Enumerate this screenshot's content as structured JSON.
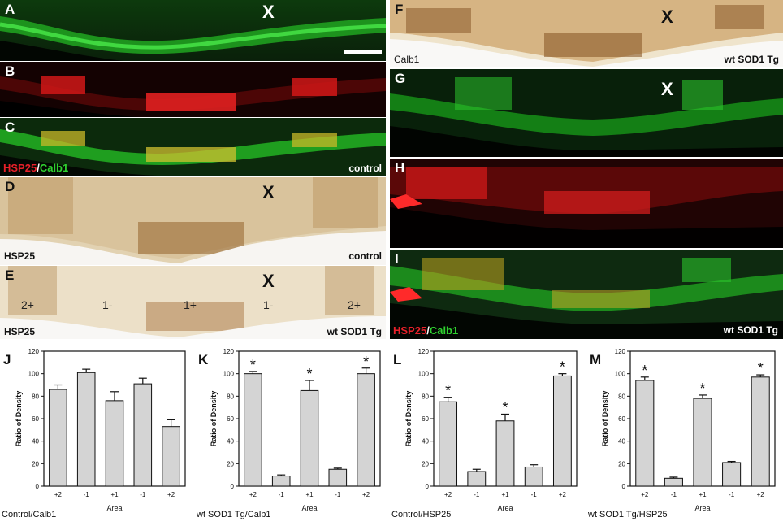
{
  "panels": {
    "A": {
      "label": "A",
      "x_mark": "X"
    },
    "B": {
      "label": "B"
    },
    "C": {
      "label": "C",
      "caption_red": "HSP25",
      "caption_slash": "/",
      "caption_green": "Calb1",
      "condition": "control"
    },
    "D": {
      "label": "D",
      "x_mark": "X",
      "stain": "HSP25",
      "condition": "control"
    },
    "E": {
      "label": "E",
      "x_mark": "X",
      "stain": "HSP25",
      "condition": "wt SOD1 Tg",
      "zones": [
        "2+",
        "1-",
        "1+",
        "1-",
        "2+"
      ]
    },
    "F": {
      "label": "F",
      "x_mark": "X",
      "stain": "Calb1",
      "condition": "wt SOD1 Tg"
    },
    "G": {
      "label": "G",
      "x_mark": "X"
    },
    "H": {
      "label": "H"
    },
    "I": {
      "label": "I",
      "caption_red": "HSP25",
      "caption_slash": "/",
      "caption_green": "Calb1",
      "condition": "wt SOD1 Tg"
    }
  },
  "colors": {
    "red": "#e8202a",
    "green": "#2fd22f",
    "bar_fill": "#d4d4d4"
  },
  "chart_data": [
    {
      "panel": "J",
      "type": "bar",
      "caption": "Control/Calb1",
      "xlabel": "Area",
      "ylabel": "Ratio of Density",
      "categories": [
        "+2",
        "-1",
        "+1",
        "-1",
        "+2"
      ],
      "values": [
        86,
        101,
        76,
        91,
        53
      ],
      "errors": [
        4,
        3,
        8,
        5,
        6
      ],
      "significant": [
        false,
        false,
        false,
        false,
        false
      ],
      "ylim": [
        0,
        120
      ],
      "yticks": [
        0,
        20,
        40,
        60,
        80,
        100,
        120
      ]
    },
    {
      "panel": "K",
      "type": "bar",
      "caption": "wt SOD1 Tg/Calb1",
      "xlabel": "Area",
      "ylabel": "Ratio of Density",
      "categories": [
        "+2",
        "-1",
        "+1",
        "-1",
        "+2"
      ],
      "values": [
        100,
        9,
        85,
        15,
        100
      ],
      "errors": [
        2,
        1,
        9,
        1,
        5
      ],
      "significant": [
        true,
        false,
        true,
        false,
        true
      ],
      "ylim": [
        0,
        120
      ],
      "yticks": [
        0,
        20,
        40,
        60,
        80,
        100,
        120
      ]
    },
    {
      "panel": "L",
      "type": "bar",
      "caption": "Control/HSP25",
      "xlabel": "Area",
      "ylabel": "Ratio of Density",
      "categories": [
        "+2",
        "-1",
        "+1",
        "-1",
        "+2"
      ],
      "values": [
        75,
        13,
        58,
        17,
        98
      ],
      "errors": [
        4,
        2,
        6,
        2,
        2
      ],
      "significant": [
        true,
        false,
        true,
        false,
        true
      ],
      "ylim": [
        0,
        120
      ],
      "yticks": [
        0,
        20,
        40,
        60,
        80,
        100,
        120
      ]
    },
    {
      "panel": "M",
      "type": "bar",
      "caption": "wt SOD1 Tg/HSP25",
      "xlabel": "Area",
      "ylabel": "Ratio of Density",
      "categories": [
        "+2",
        "-1",
        "+1",
        "-1",
        "+2"
      ],
      "values": [
        94,
        7,
        78,
        21,
        97
      ],
      "errors": [
        3,
        1,
        3,
        1,
        2
      ],
      "significant": [
        true,
        false,
        true,
        false,
        true
      ],
      "ylim": [
        0,
        120
      ],
      "yticks": [
        0,
        20,
        40,
        60,
        80,
        100,
        120
      ]
    }
  ],
  "significance_marker": "*"
}
